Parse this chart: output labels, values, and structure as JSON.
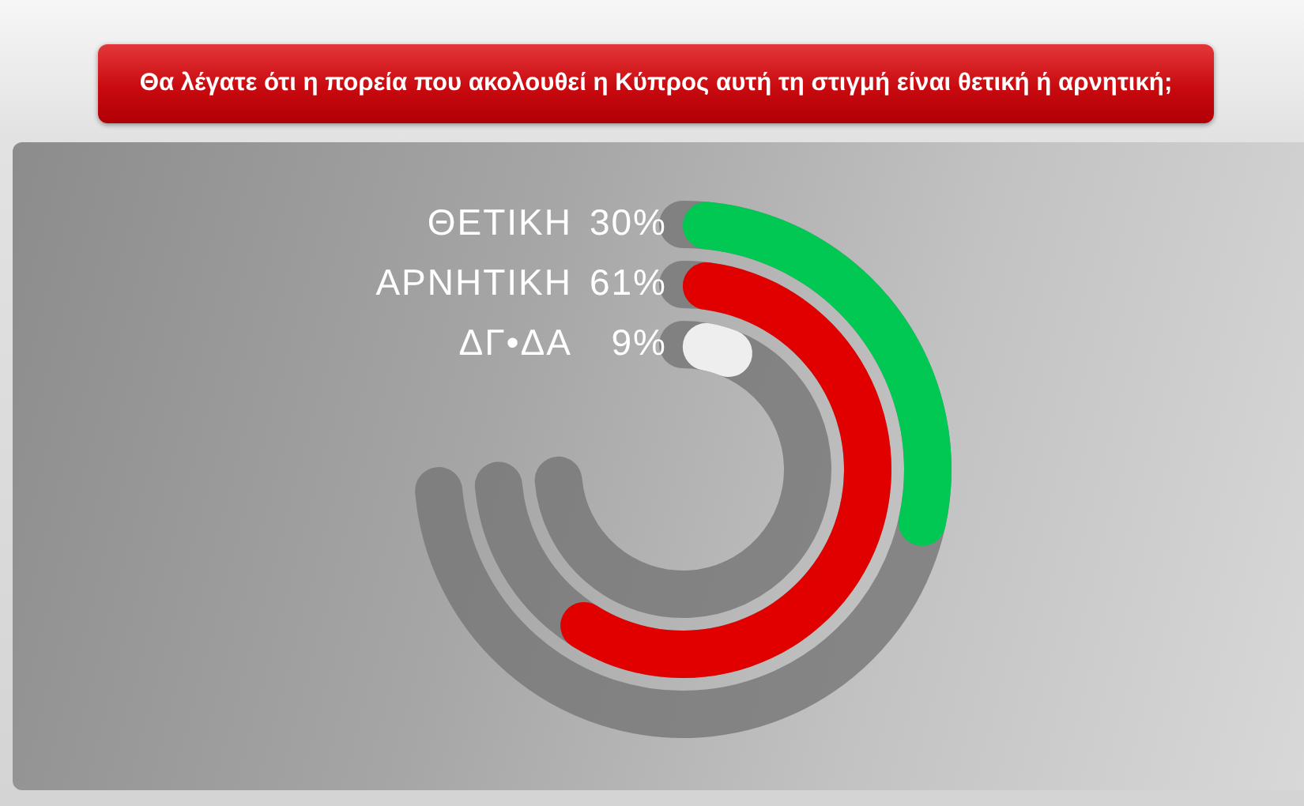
{
  "chart_data": {
    "type": "other",
    "title": "Θα λέγατε ότι η πορεία που ακολουθεί η Κύπρος αυτή τη στιγμή είναι θετική ή αρνητική;",
    "categories": [
      "ΘΕΤΙΚΗ",
      "ΑΡΝΗΤΙΚΗ",
      "ΔΓ•ΔΑ"
    ],
    "values": [
      30,
      61,
      9
    ],
    "value_labels": [
      "30%",
      "61%",
      "9%"
    ],
    "colors": [
      "#00c853",
      "#e10000",
      "#eeeeee"
    ]
  }
}
